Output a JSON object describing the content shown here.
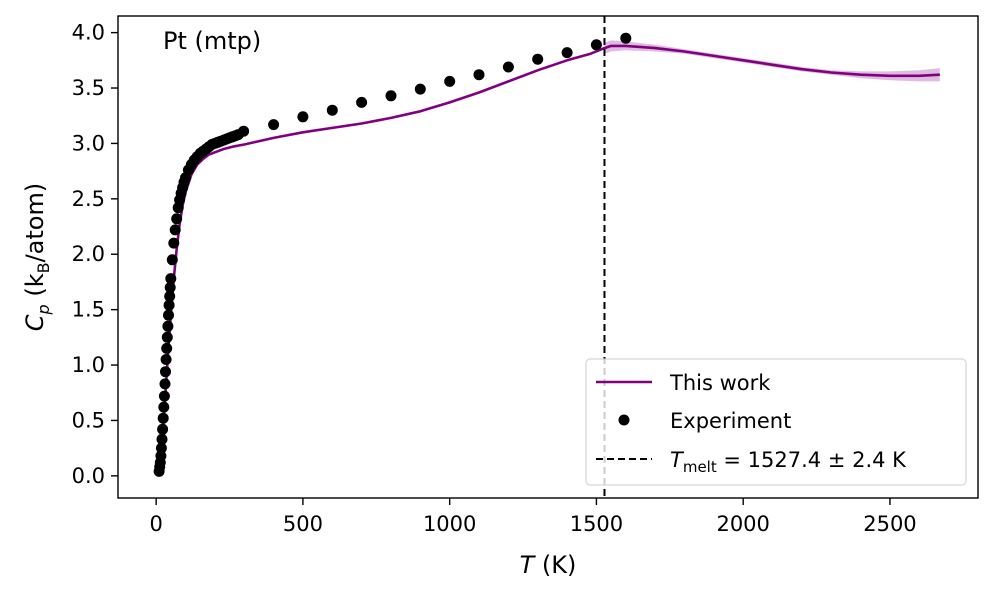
{
  "chart_data": {
    "type": "line",
    "annotation": "Pt (mtp)",
    "xlabel": {
      "var": "T",
      "unit": " (K)"
    },
    "ylabel": {
      "pre": "C",
      "sub": "p",
      "mid": " (k",
      "sub2": "B",
      "post": "/atom)"
    },
    "xlim": [
      -130,
      2800
    ],
    "ylim": [
      -0.2,
      4.15
    ],
    "xticks": [
      0,
      500,
      1000,
      1500,
      2000,
      2500
    ],
    "yticks": [
      0.0,
      0.5,
      1.0,
      1.5,
      2.0,
      2.5,
      3.0,
      3.5,
      4.0
    ],
    "xtick_labels": [
      "0",
      "500",
      "1000",
      "1500",
      "2000",
      "2500"
    ],
    "ytick_labels": [
      "0.0",
      "0.5",
      "1.0",
      "1.5",
      "2.0",
      "2.5",
      "3.0",
      "3.5",
      "4.0"
    ],
    "melt_temperature": 1527.4,
    "legend": {
      "position": "lower-right",
      "entries": {
        "this_work": "This work",
        "experiment": "Experiment",
        "melt": {
          "prefix": "T",
          "sub": "melt",
          "suffix": " = 1527.4 ± 2.4 K"
        }
      }
    },
    "colors": {
      "this_work": "#800080",
      "band": "#c98ec9",
      "experiment": "#000000",
      "melt": "#000000"
    },
    "series": [
      {
        "name": "This work",
        "x": [
          10,
          20,
          30,
          40,
          50,
          60,
          70,
          80,
          90,
          100,
          120,
          140,
          160,
          180,
          200,
          230,
          260,
          300,
          400,
          500,
          600,
          700,
          800,
          900,
          1000,
          1100,
          1200,
          1300,
          1400,
          1480,
          1527.4,
          1550,
          1600,
          1700,
          1800,
          1900,
          2000,
          2100,
          2200,
          2300,
          2400,
          2500,
          2600,
          2670
        ],
        "y": [
          0.05,
          0.3,
          0.68,
          1.08,
          1.45,
          1.78,
          2.05,
          2.27,
          2.44,
          2.56,
          2.72,
          2.81,
          2.86,
          2.9,
          2.92,
          2.95,
          2.97,
          2.99,
          3.05,
          3.1,
          3.14,
          3.18,
          3.23,
          3.29,
          3.37,
          3.46,
          3.56,
          3.66,
          3.75,
          3.81,
          3.86,
          3.88,
          3.88,
          3.86,
          3.83,
          3.79,
          3.75,
          3.71,
          3.67,
          3.64,
          3.62,
          3.61,
          3.61,
          3.62
        ],
        "band": [
          0,
          0,
          0,
          0,
          0,
          0,
          0,
          0,
          0,
          0,
          0,
          0,
          0,
          0,
          0,
          0,
          0,
          0,
          0,
          0,
          0,
          0,
          0,
          0,
          0,
          0,
          0,
          0,
          0,
          0,
          0.05,
          0.05,
          0.04,
          0.03,
          0.02,
          0.02,
          0.02,
          0.02,
          0.02,
          0.02,
          0.03,
          0.04,
          0.05,
          0.06
        ]
      },
      {
        "name": "Experiment",
        "x": [
          10,
          12,
          14,
          16,
          18,
          20,
          22,
          24,
          26,
          28,
          30,
          32,
          34,
          36,
          38,
          40,
          42,
          44,
          46,
          48,
          50,
          55,
          60,
          65,
          70,
          75,
          80,
          85,
          90,
          95,
          100,
          110,
          120,
          130,
          140,
          150,
          160,
          170,
          180,
          190,
          200,
          210,
          220,
          230,
          240,
          250,
          260,
          270,
          280,
          298,
          400,
          500,
          600,
          700,
          800,
          900,
          1000,
          1100,
          1200,
          1300,
          1400,
          1500,
          1600
        ],
        "y": [
          0.04,
          0.08,
          0.12,
          0.18,
          0.25,
          0.33,
          0.42,
          0.52,
          0.62,
          0.72,
          0.83,
          0.94,
          1.05,
          1.15,
          1.25,
          1.35,
          1.45,
          1.54,
          1.62,
          1.7,
          1.78,
          1.95,
          2.1,
          2.22,
          2.32,
          2.42,
          2.49,
          2.55,
          2.6,
          2.65,
          2.69,
          2.76,
          2.81,
          2.85,
          2.88,
          2.91,
          2.93,
          2.95,
          2.97,
          2.99,
          3.0,
          3.01,
          3.02,
          3.03,
          3.04,
          3.05,
          3.06,
          3.07,
          3.08,
          3.11,
          3.17,
          3.24,
          3.3,
          3.37,
          3.43,
          3.49,
          3.56,
          3.62,
          3.69,
          3.76,
          3.82,
          3.89,
          3.95
        ]
      }
    ]
  }
}
